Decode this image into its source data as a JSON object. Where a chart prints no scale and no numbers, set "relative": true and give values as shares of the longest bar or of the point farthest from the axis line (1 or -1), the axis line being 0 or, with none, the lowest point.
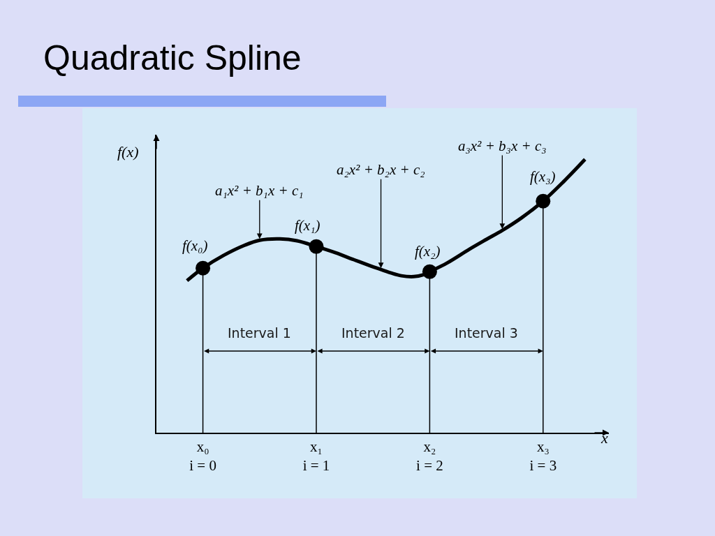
{
  "chart_data": {
    "type": "line",
    "title": "Quadratic Spline",
    "xlabel": "x",
    "ylabel": "f(x)",
    "relative": true,
    "tick_labels": "x",
    "xlim": [
      -0.41,
      3.58
    ],
    "xticks": [
      {
        "value": 0,
        "label": "x₀\ni = 0"
      },
      {
        "value": 1,
        "label": "x₁\ni = 1"
      },
      {
        "value": 2,
        "label": "x₂\ni = 2"
      },
      {
        "value": 3,
        "label": "x₃\ni = 3"
      }
    ],
    "series": [
      {
        "color": "#000000",
        "marker": "none",
        "line_style": "solid",
        "x": [
          -0.14,
          0,
          0.18,
          0.37,
          0.5,
          0.68,
          0.83,
          1,
          1.17,
          1.33,
          1.48,
          1.57,
          1.66,
          1.75,
          1.86,
          1.94,
          2,
          2.15,
          2.35,
          2.5,
          2.64,
          2.81,
          3,
          3.18,
          3.37
        ],
        "values": [
          0.556,
          0.602,
          0.648,
          0.686,
          0.704,
          0.709,
          0.702,
          0.681,
          0.658,
          0.633,
          0.61,
          0.597,
          0.584,
          0.574,
          0.571,
          0.577,
          0.589,
          0.62,
          0.671,
          0.707,
          0.74,
          0.786,
          0.847,
          0.918,
          1
        ]
      },
      {
        "type": "lollipop",
        "color": "#000000",
        "marker": "circle",
        "x": [
          0,
          1,
          2,
          3
        ],
        "values": [
          0.602,
          0.681,
          0.589,
          0.847
        ]
      }
    ],
    "annotations": [
      {
        "text": "f(x₀)",
        "x": 0,
        "y": 0.602
      },
      {
        "text": "f(x₁)",
        "x": 1,
        "y": 0.681
      },
      {
        "text": "f(x₂)",
        "x": 2,
        "y": 0.589
      },
      {
        "text": "f(x₃)",
        "x": 3,
        "y": 0.847
      },
      {
        "text": "a₁x² + b₁x + c₁",
        "x": 0.5,
        "y": 0.704
      },
      {
        "text": "a₂x² + b₂x + c₂",
        "x": 1.57,
        "y": 0.597
      },
      {
        "text": "a₃x² + b₃x + c₃",
        "x": 2.64,
        "y": 0.74
      },
      "Interval 1",
      "Interval 2",
      "Interval 3"
    ]
  }
}
